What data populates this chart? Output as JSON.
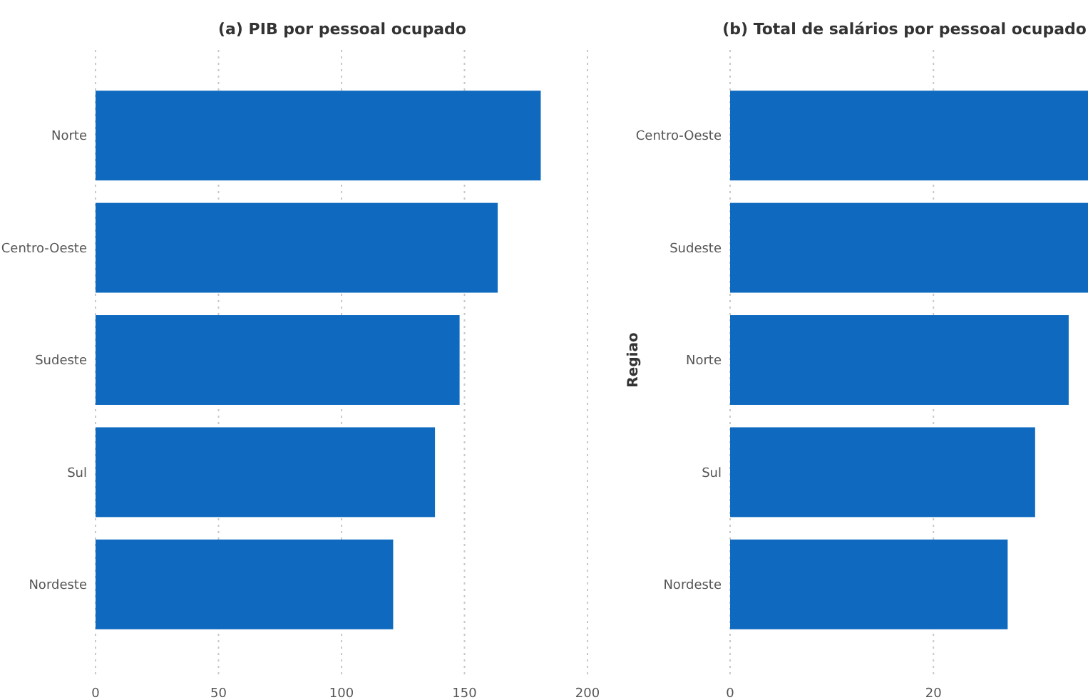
{
  "chart_data": [
    {
      "type": "bar",
      "orientation": "horizontal",
      "title": "(a) PIB por pessoal ocupado",
      "categories": [
        "Norte",
        "Centro-Oeste",
        "Sudeste",
        "Sul",
        "Nordeste"
      ],
      "values": [
        181,
        163.5,
        148,
        138,
        121
      ],
      "color": "#0f6abf",
      "xlim": [
        0,
        200
      ],
      "xticks": [
        0,
        50,
        100,
        150,
        200
      ],
      "grid": "x"
    },
    {
      "type": "bar",
      "orientation": "horizontal",
      "title": "(b) Total de salários por pessoal ocupado",
      "ylabel": "Regiao",
      "categories": [
        "Centro-Oeste",
        "Sudeste",
        "Norte",
        "Sul",
        "Nordeste"
      ],
      "values": [
        35.2,
        35.2,
        33.3,
        30,
        27.3
      ],
      "color": "#0f6abf",
      "xlim": [
        0,
        35.2
      ],
      "xticks": [
        0,
        20
      ],
      "grid": "x"
    }
  ]
}
